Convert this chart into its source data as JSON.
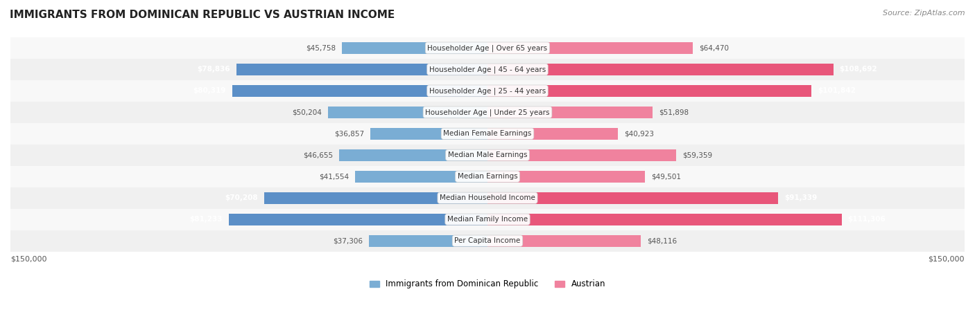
{
  "title": "IMMIGRANTS FROM DOMINICAN REPUBLIC VS AUSTRIAN INCOME",
  "source": "Source: ZipAtlas.com",
  "categories": [
    "Per Capita Income",
    "Median Family Income",
    "Median Household Income",
    "Median Earnings",
    "Median Male Earnings",
    "Median Female Earnings",
    "Householder Age | Under 25 years",
    "Householder Age | 25 - 44 years",
    "Householder Age | 45 - 64 years",
    "Householder Age | Over 65 years"
  ],
  "dominican_values": [
    37306,
    81233,
    70208,
    41554,
    46655,
    36857,
    50204,
    80319,
    78836,
    45758
  ],
  "austrian_values": [
    48116,
    111306,
    91339,
    49501,
    59359,
    40923,
    51898,
    101842,
    108692,
    64470
  ],
  "dominican_color": "#7aadd4",
  "austrian_color": "#f0829e",
  "dominican_color_strong": "#5b8fc7",
  "austrian_color_strong": "#e8567a",
  "bar_height": 0.55,
  "max_value": 150000,
  "bg_row_color": "#f0f0f0",
  "bg_row_color_alt": "#f8f8f8",
  "legend_label_dominican": "Immigrants from Dominican Republic",
  "legend_label_austrian": "Austrian",
  "xlabel_left": "$150,000",
  "xlabel_right": "$150,000"
}
